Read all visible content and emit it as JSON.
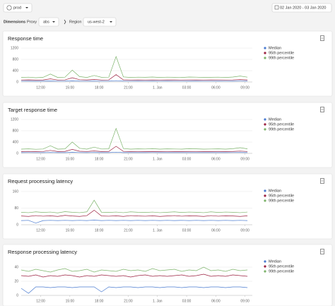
{
  "header": {
    "environment": "prod",
    "date_range": "02 Jan 2020 - 03 Jan 2020",
    "dimensions_label": "Dimensions",
    "proxy_label": "Proxy",
    "proxy_value": "abs",
    "region_label": "Region",
    "region_value": "us-west-2"
  },
  "chart_data": [
    {
      "type": "line",
      "title": "Response time",
      "x": [
        10,
        10.75,
        11.5,
        12.25,
        13,
        13.75,
        14.5,
        15.25,
        16,
        16.75,
        17.5,
        18.25,
        19,
        19.75,
        20.5,
        21.25,
        22,
        22.75,
        23.5,
        24.25,
        25,
        25.75,
        26.5,
        27.25,
        28,
        28.75,
        29.5,
        30.25,
        31,
        31.75,
        32.5,
        33.25
      ],
      "xlim": [
        10,
        33.75
      ],
      "xticks": [
        {
          "value": 12,
          "label": "12:00"
        },
        {
          "value": 15,
          "label": "15:00"
        },
        {
          "value": 18,
          "label": "18:00"
        },
        {
          "value": 21,
          "label": "21:00"
        },
        {
          "value": 24,
          "label": "1. Jan"
        },
        {
          "value": 27,
          "label": "03:00"
        },
        {
          "value": 30,
          "label": "06:00"
        },
        {
          "value": 33,
          "label": "09:00"
        }
      ],
      "ylim": [
        0,
        1250
      ],
      "yticks": [
        0,
        400,
        800,
        1200
      ],
      "grid": true,
      "series": [
        {
          "name": "Median",
          "color": "#4a7bd0",
          "values": [
            30,
            32,
            29,
            31,
            35,
            30,
            31,
            40,
            32,
            30,
            33,
            30,
            31,
            45,
            31,
            30,
            31,
            30,
            32,
            30,
            31,
            30,
            30,
            31,
            31,
            30,
            30,
            31,
            30,
            32,
            33,
            31
          ]
        },
        {
          "name": "95th percentile",
          "color": "#9b2040",
          "values": [
            70,
            75,
            68,
            72,
            110,
            70,
            74,
            150,
            80,
            72,
            90,
            70,
            73,
            260,
            75,
            70,
            72,
            70,
            74,
            70,
            72,
            71,
            70,
            73,
            72,
            70,
            71,
            73,
            70,
            74,
            85,
            72
          ]
        },
        {
          "name": "99th percentile",
          "color": "#7cb36a",
          "values": [
            160,
            170,
            150,
            165,
            280,
            160,
            170,
            420,
            190,
            160,
            230,
            165,
            170,
            900,
            180,
            160,
            170,
            165,
            175,
            160,
            170,
            165,
            160,
            175,
            170,
            160,
            165,
            170,
            160,
            175,
            210,
            170
          ]
        }
      ]
    },
    {
      "type": "line",
      "title": "Target response time",
      "x": [
        10,
        10.75,
        11.5,
        12.25,
        13,
        13.75,
        14.5,
        15.25,
        16,
        16.75,
        17.5,
        18.25,
        19,
        19.75,
        20.5,
        21.25,
        22,
        22.75,
        23.5,
        24.25,
        25,
        25.75,
        26.5,
        27.25,
        28,
        28.75,
        29.5,
        30.25,
        31,
        31.75,
        32.5,
        33.25
      ],
      "xlim": [
        10,
        33.75
      ],
      "xticks": [
        {
          "value": 12,
          "label": "12:00"
        },
        {
          "value": 15,
          "label": "15:00"
        },
        {
          "value": 18,
          "label": "18:00"
        },
        {
          "value": 21,
          "label": "21:00"
        },
        {
          "value": 24,
          "label": "1. Jan"
        },
        {
          "value": 27,
          "label": "03:00"
        },
        {
          "value": 30,
          "label": "06:00"
        },
        {
          "value": 33,
          "label": "09:00"
        }
      ],
      "ylim": [
        0,
        1250
      ],
      "yticks": [
        0,
        400,
        800,
        1200
      ],
      "grid": true,
      "series": [
        {
          "name": "Median",
          "color": "#4a7bd0",
          "values": [
            28,
            30,
            27,
            29,
            33,
            28,
            29,
            38,
            30,
            28,
            31,
            28,
            29,
            42,
            29,
            28,
            29,
            28,
            30,
            28,
            29,
            28,
            28,
            29,
            29,
            28,
            28,
            29,
            28,
            30,
            31,
            29
          ]
        },
        {
          "name": "95th percentile",
          "color": "#9b2040",
          "values": [
            65,
            70,
            63,
            67,
            105,
            65,
            69,
            140,
            75,
            67,
            85,
            65,
            68,
            250,
            70,
            65,
            67,
            65,
            69,
            65,
            67,
            66,
            65,
            68,
            67,
            65,
            66,
            68,
            65,
            69,
            80,
            67
          ]
        },
        {
          "name": "99th percentile",
          "color": "#7cb36a",
          "values": [
            150,
            160,
            145,
            155,
            270,
            150,
            160,
            400,
            180,
            150,
            220,
            155,
            160,
            880,
            170,
            150,
            160,
            155,
            165,
            150,
            160,
            155,
            150,
            165,
            160,
            150,
            155,
            160,
            150,
            165,
            200,
            160
          ]
        }
      ]
    },
    {
      "type": "line",
      "title": "Request processing latency",
      "x": [
        10,
        10.75,
        11.5,
        12.25,
        13,
        13.75,
        14.5,
        15.25,
        16,
        16.75,
        17.5,
        18.25,
        19,
        19.75,
        20.5,
        21.25,
        22,
        22.75,
        23.5,
        24.25,
        25,
        25.75,
        26.5,
        27.25,
        28,
        28.75,
        29.5,
        30.25,
        31,
        31.75,
        32.5,
        33.25
      ],
      "xlim": [
        10,
        33.75
      ],
      "xticks": [
        {
          "value": 12,
          "label": "12:00"
        },
        {
          "value": 15,
          "label": "15:00"
        },
        {
          "value": 18,
          "label": "18:00"
        },
        {
          "value": 21,
          "label": "21:00"
        },
        {
          "value": 24,
          "label": "1. Jan"
        },
        {
          "value": 27,
          "label": "03:00"
        },
        {
          "value": 30,
          "label": "06:00"
        },
        {
          "value": 33,
          "label": "09:00"
        }
      ],
      "ylim": [
        0,
        170
      ],
      "yticks": [
        0,
        80,
        160
      ],
      "grid": true,
      "series": [
        {
          "name": "Median",
          "color": "#4a7bd0",
          "values": [
            20,
            21,
            8,
            20,
            21,
            20,
            21,
            20,
            21,
            20,
            22,
            20,
            21,
            20,
            21,
            20,
            21,
            20,
            21,
            20,
            21,
            20,
            21,
            20,
            21,
            20,
            21,
            20,
            21,
            20,
            21,
            20
          ]
        },
        {
          "name": "95th percentile",
          "color": "#9b2040",
          "values": [
            42,
            40,
            44,
            41,
            43,
            40,
            45,
            42,
            40,
            44,
            70,
            42,
            41,
            43,
            40,
            44,
            42,
            41,
            43,
            40,
            42,
            44,
            41,
            43,
            42,
            40,
            44,
            41,
            43,
            42,
            40,
            43
          ]
        },
        {
          "name": "99th percentile",
          "color": "#7cb36a",
          "values": [
            60,
            58,
            62,
            59,
            61,
            57,
            63,
            60,
            58,
            62,
            118,
            60,
            59,
            61,
            58,
            62,
            60,
            59,
            61,
            58,
            60,
            62,
            59,
            61,
            60,
            58,
            62,
            59,
            61,
            60,
            58,
            61
          ]
        }
      ]
    },
    {
      "type": "line",
      "title": "Response processing latency",
      "x": [
        10,
        10.75,
        11.5,
        12.25,
        13,
        13.75,
        14.5,
        15.25,
        16,
        16.75,
        17.5,
        18.25,
        19,
        19.75,
        20.5,
        21.25,
        22,
        22.75,
        23.5,
        24.25,
        25,
        25.75,
        26.5,
        27.25,
        28,
        28.75,
        29.5,
        30.25,
        31,
        31.75,
        32.5,
        33.25
      ],
      "xlim": [
        10,
        33.75
      ],
      "xticks": [
        {
          "value": 12,
          "label": "12:00"
        },
        {
          "value": 15,
          "label": "15:00"
        },
        {
          "value": 18,
          "label": "18:00"
        },
        {
          "value": 21,
          "label": "21:00"
        },
        {
          "value": 24,
          "label": "1. Jan"
        },
        {
          "value": 27,
          "label": "03:00"
        },
        {
          "value": 30,
          "label": "06:00"
        },
        {
          "value": 33,
          "label": "09:00"
        }
      ],
      "ylim": [
        0,
        50
      ],
      "yticks": [
        0,
        20,
        40
      ],
      "grid": true,
      "series": [
        {
          "name": "Median",
          "color": "#4a7bd0",
          "values": [
            10,
            3,
            12,
            12,
            11,
            12,
            12,
            11,
            12,
            12,
            12,
            5,
            12,
            11,
            12,
            12,
            11,
            12,
            12,
            11,
            12,
            12,
            11,
            12,
            12,
            11,
            12,
            12,
            11,
            12,
            12,
            11
          ]
        },
        {
          "name": "95th percentile",
          "color": "#9b2040",
          "values": [
            28,
            27,
            29,
            26,
            28,
            27,
            29,
            28,
            26,
            28,
            27,
            29,
            28,
            27,
            28,
            26,
            28,
            29,
            27,
            28,
            27,
            28,
            29,
            27,
            28,
            30,
            27,
            28,
            27,
            29,
            28,
            27
          ]
        },
        {
          "name": "99th percentile",
          "color": "#7cb36a",
          "values": [
            36,
            34,
            37,
            35,
            33,
            36,
            38,
            34,
            35,
            37,
            33,
            36,
            35,
            34,
            37,
            35,
            36,
            34,
            38,
            35,
            36,
            37,
            34,
            36,
            35,
            40,
            35,
            36,
            34,
            37,
            35,
            36
          ]
        }
      ]
    }
  ]
}
